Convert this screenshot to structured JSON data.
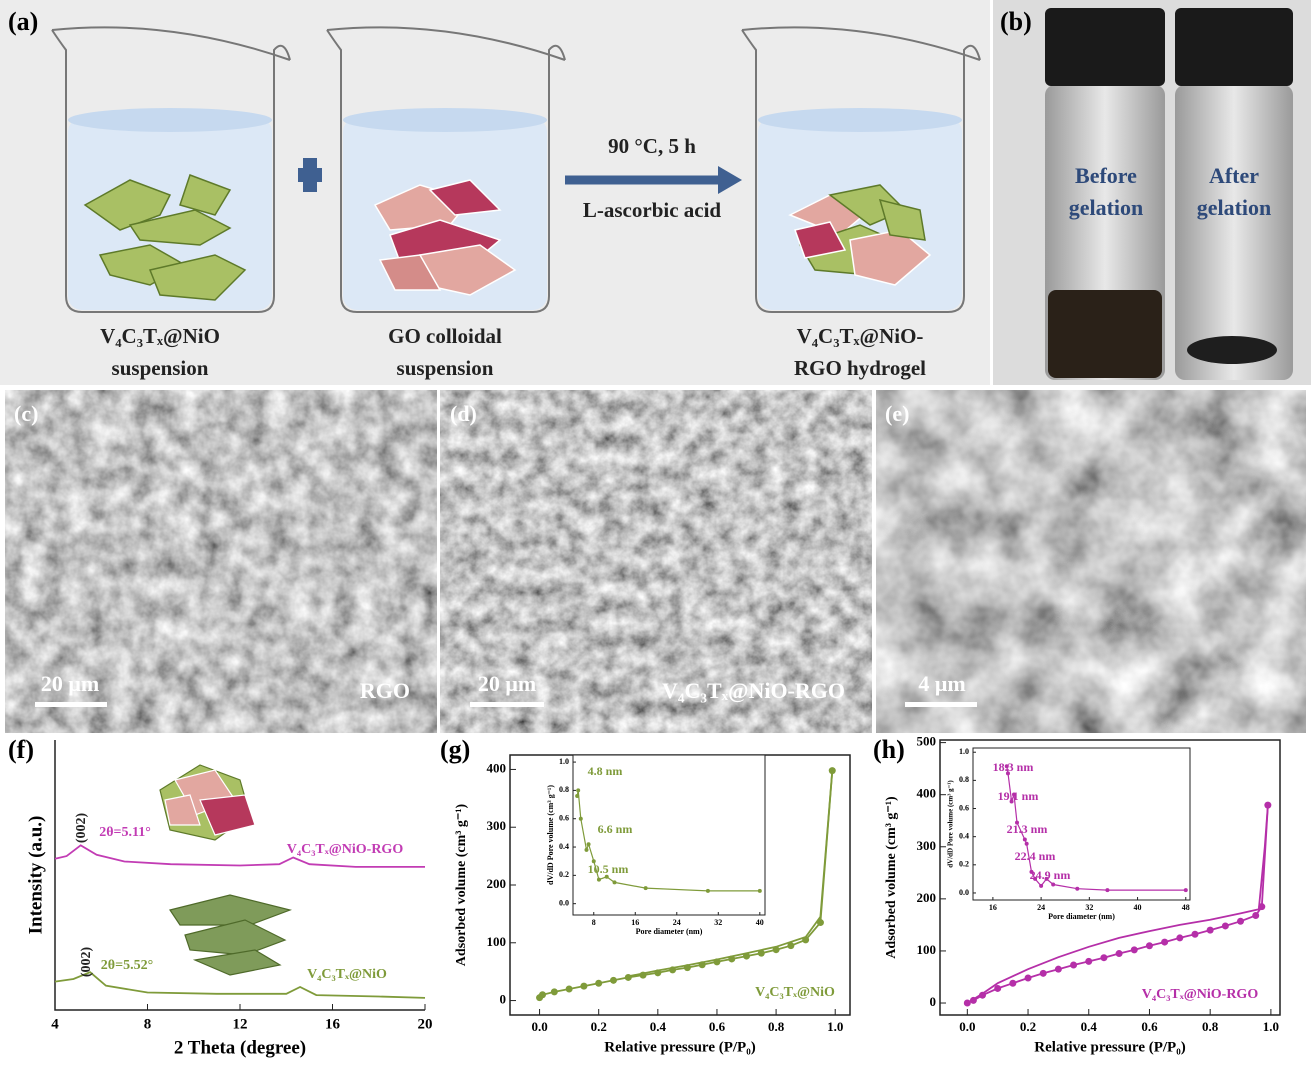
{
  "panels": {
    "a": {
      "label": "(a)",
      "beaker1": [
        "V₄C₃Tₓ@NiO",
        "suspension"
      ],
      "beaker2": [
        "GO colloidal",
        "suspension"
      ],
      "arrow_top": "90 °C, 5 h",
      "arrow_bottom": "L-ascorbic acid",
      "beaker3": [
        "V₄C₃Tₓ@NiO-",
        "RGO hydrogel"
      ]
    },
    "b": {
      "label": "(b)",
      "left": [
        "Before",
        "gelation"
      ],
      "right": [
        "After",
        "gelation"
      ]
    },
    "c": {
      "label": "(c)",
      "scale": "20 μm",
      "name": "RGO"
    },
    "d": {
      "label": "(d)",
      "scale": "20 μm",
      "name": "V₄C₃Tₓ@NiO-RGO"
    },
    "e": {
      "label": "(e)",
      "scale": "4 μm"
    }
  },
  "chart_data": [
    {
      "type": "line",
      "label": "(f)",
      "xlabel": "2 Theta (degree)",
      "ylabel": "Intensity (a.u.)",
      "xlim": [
        4,
        20
      ],
      "ylim": [
        0,
        10
      ],
      "xticks": [
        4,
        8,
        12,
        16,
        20
      ],
      "series": [
        {
          "color": "#c23cb4",
          "x": [
            4,
            4.5,
            5.11,
            5.8,
            7,
            9,
            12,
            13.7,
            14.3,
            15,
            17,
            20
          ],
          "values": [
            5.6,
            5.7,
            6.1,
            5.75,
            5.5,
            5.4,
            5.35,
            5.4,
            5.65,
            5.4,
            5.3,
            5.3
          ]
        },
        {
          "color": "#7f9b3a",
          "x": [
            4,
            4.8,
            5.52,
            6.2,
            8,
            11,
            14,
            14.6,
            15.3,
            18,
            20
          ],
          "values": [
            1.05,
            1.15,
            1.4,
            0.9,
            0.65,
            0.6,
            0.6,
            0.85,
            0.55,
            0.5,
            0.45
          ]
        }
      ],
      "annotations": [
        "(002)",
        "2θ=5.11°",
        "V₄C₃Tₓ@NiO-RGO",
        "(002)",
        "2θ=5.52°",
        "V₄C₃Tₓ@NiO"
      ]
    },
    {
      "type": "line",
      "label": "(g)",
      "xlabel": "Relative pressure (P/P₀)",
      "ylabel": "Adsorbed volume (cm³ g⁻¹)",
      "xlim": [
        -0.1,
        1.05
      ],
      "ylim": [
        -25,
        425
      ],
      "xticks": [
        {
          "value": 0,
          "label": "0.0"
        },
        0.2,
        0.4,
        0.6,
        0.8,
        {
          "value": 1,
          "label": "1.0"
        }
      ],
      "yticks": [
        0,
        100,
        200,
        300,
        400
      ],
      "series": [
        {
          "color": "#7f9b3a",
          "markers": true,
          "x": [
            0,
            0.01,
            0.05,
            0.1,
            0.15,
            0.2,
            0.25,
            0.3,
            0.35,
            0.4,
            0.45,
            0.5,
            0.55,
            0.6,
            0.65,
            0.7,
            0.75,
            0.8,
            0.85,
            0.9,
            0.95,
            0.99
          ],
          "values": [
            5,
            10,
            15,
            20,
            25,
            30,
            35,
            40,
            44,
            48,
            53,
            57,
            62,
            67,
            72,
            77,
            82,
            88,
            95,
            105,
            135,
            398
          ]
        },
        {
          "color": "#7f9b3a",
          "x": [
            0.99,
            0.95,
            0.9,
            0.8,
            0.7,
            0.6,
            0.5,
            0.4,
            0.3
          ],
          "values": [
            398,
            145,
            110,
            93,
            82,
            71,
            61,
            52,
            42
          ]
        }
      ],
      "annotations": [
        "V₄C₃Tₓ@NiO"
      ]
    },
    {
      "type": "line",
      "label": "(h)",
      "xlabel": "Relative pressure (P/P₀)",
      "ylabel": "Adsorbed volume (cm³ g⁻¹)",
      "xlim": [
        -0.09,
        1.03
      ],
      "ylim": [
        -23,
        505
      ],
      "xticks": [
        {
          "value": 0,
          "label": "0.0"
        },
        0.2,
        0.4,
        0.6,
        0.8,
        {
          "value": 1,
          "label": "1.0"
        }
      ],
      "yticks": [
        0,
        100,
        200,
        300,
        400,
        500
      ],
      "series": [
        {
          "color": "#b52fa8",
          "markers": true,
          "x": [
            0,
            0.02,
            0.05,
            0.1,
            0.15,
            0.2,
            0.25,
            0.3,
            0.35,
            0.4,
            0.45,
            0.5,
            0.55,
            0.6,
            0.65,
            0.7,
            0.75,
            0.8,
            0.85,
            0.9,
            0.95,
            0.97,
            0.99
          ],
          "values": [
            0,
            5,
            15,
            28,
            38,
            48,
            57,
            65,
            73,
            80,
            87,
            95,
            102,
            110,
            117,
            125,
            132,
            140,
            148,
            157,
            168,
            185,
            380
          ]
        },
        {
          "color": "#b52fa8",
          "x": [
            0.99,
            0.98,
            0.96,
            0.9,
            0.8,
            0.7,
            0.6,
            0.5,
            0.4,
            0.3,
            0.2,
            0.1,
            0.05,
            0
          ],
          "values": [
            380,
            300,
            180,
            172,
            160,
            150,
            138,
            125,
            108,
            88,
            65,
            38,
            18,
            0
          ]
        }
      ],
      "annotations": [
        "V₄C₃Tₓ@NiO-RGO"
      ]
    },
    {
      "type": "line",
      "xlabel": "Pore diameter (nm)",
      "ylabel": "dV/dD Pore volume (cm³ g⁻¹)",
      "xlim": [
        4,
        41
      ],
      "ylim": [
        -0.08,
        1.05
      ],
      "xticks": [
        8,
        16,
        24,
        32,
        40
      ],
      "yticks": [
        {
          "value": 0,
          "label": "0.0"
        },
        0.2,
        0.4,
        0.6,
        0.8,
        {
          "value": 1,
          "label": "1.0"
        }
      ],
      "series": [
        {
          "color": "#7f9b3a",
          "markers": true,
          "x": [
            4.8,
            5,
            5.5,
            6.6,
            7,
            8,
            9,
            10.5,
            12,
            18,
            30,
            40
          ],
          "values": [
            0.76,
            0.8,
            0.6,
            0.38,
            0.42,
            0.3,
            0.17,
            0.19,
            0.15,
            0.11,
            0.09,
            0.09
          ]
        }
      ],
      "annotations": [
        "4.8 nm",
        "6.6 nm",
        "10.5 nm"
      ]
    },
    {
      "type": "line",
      "xlabel": "Pore diameter (nm)",
      "ylabel": "dV/dD Pore volume (cm³ g⁻¹)",
      "xlim": [
        12.7,
        48.7
      ],
      "ylim": [
        -0.05,
        1.03
      ],
      "xticks": [
        16,
        24,
        32,
        40,
        48
      ],
      "yticks": [
        {
          "value": 0,
          "label": "0.0"
        },
        0.2,
        0.4,
        0.6,
        0.8,
        {
          "value": 1,
          "label": "1.0"
        }
      ],
      "series": [
        {
          "color": "#b52fa8",
          "markers": true,
          "x": [
            18.3,
            18.5,
            19.1,
            19.5,
            20,
            21.3,
            21.6,
            22.4,
            23,
            24,
            24.9,
            26,
            30,
            35,
            48
          ],
          "values": [
            0.9,
            0.85,
            0.65,
            0.7,
            0.5,
            0.38,
            0.35,
            0.15,
            0.1,
            0.05,
            0.1,
            0.06,
            0.03,
            0.02,
            0.02
          ]
        }
      ],
      "annotations": [
        "18.3 nm",
        "19.1 nm",
        "21.3 nm",
        "22.4 nm",
        "24.9 nm"
      ]
    }
  ]
}
